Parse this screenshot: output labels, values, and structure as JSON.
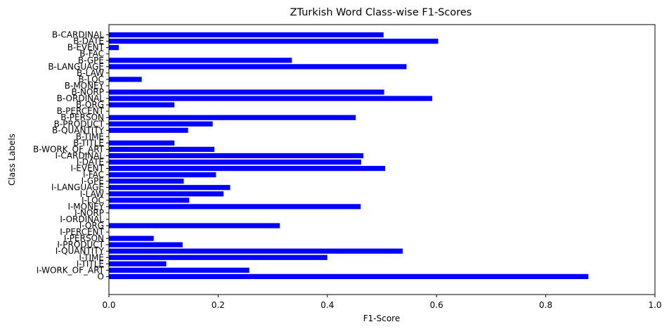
{
  "chart_data": {
    "type": "bar",
    "orientation": "horizontal",
    "title": "ZTurkish Word Class-wise F1-Scores",
    "xlabel": "F1-Score",
    "ylabel": "Class Labels",
    "xlim": [
      0,
      1.0
    ],
    "xticks": [
      "0.0",
      "0.2",
      "0.4",
      "0.6",
      "0.8",
      "1.0"
    ],
    "bar_color": "#0000ff",
    "grid": false,
    "categories": [
      "B-CARDINAL",
      "B-DATE",
      "B-EVENT",
      "B-FAC",
      "B-GPE",
      "B-LANGUAGE",
      "B-LAW",
      "B-LOC",
      "B-MONEY",
      "B-NORP",
      "B-ORDINAL",
      "B-ORG",
      "B-PERCENT",
      "B-PERSON",
      "B-PRODUCT",
      "B-QUANTITY",
      "B-TIME",
      "B-TITLE",
      "B-WORK_OF_ART",
      "I-CARDINAL",
      "I-DATE",
      "I-EVENT",
      "I-FAC",
      "I-GPE",
      "I-LANGUAGE",
      "I-LAW",
      "I-LOC",
      "I-MONEY",
      "I-NORP",
      "I-ORDINAL",
      "I-ORG",
      "I-PERCENT",
      "I-PERSON",
      "I-PRODUCT",
      "I-QUANTITY",
      "I-TIME",
      "I-TITLE",
      "I-WORK_OF_ART",
      "O"
    ],
    "values": [
      0.503,
      0.603,
      0.018,
      0.0,
      0.335,
      0.545,
      0.0,
      0.06,
      0.0,
      0.504,
      0.592,
      0.12,
      0.0,
      0.452,
      0.19,
      0.145,
      0.0,
      0.12,
      0.193,
      0.466,
      0.462,
      0.506,
      0.196,
      0.137,
      0.222,
      0.21,
      0.147,
      0.461,
      0.0,
      0.0,
      0.313,
      0.0,
      0.082,
      0.135,
      0.538,
      0.4,
      0.105,
      0.257,
      0.878
    ]
  }
}
